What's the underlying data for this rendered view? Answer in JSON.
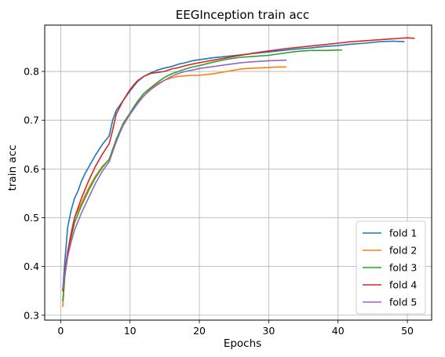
{
  "chart_data": {
    "type": "line",
    "title": "EEGInception train acc",
    "xlabel": "Epochs",
    "ylabel": "train acc",
    "xlim": [
      -2.3,
      53.5
    ],
    "ylim": [
      0.29,
      0.895
    ],
    "xticks": [
      0,
      10,
      20,
      30,
      40,
      50
    ],
    "yticks": [
      0.3,
      0.4,
      0.5,
      0.6,
      0.7,
      0.8
    ],
    "grid": true,
    "legend_position": "lower-right",
    "series": [
      {
        "name": "fold 1",
        "color": "#1f77b4",
        "x": [
          0.3,
          0.6,
          1,
          1.5,
          2,
          2.5,
          3,
          3.5,
          4,
          5,
          6,
          7,
          7.5,
          8,
          9,
          10,
          11,
          12,
          13,
          14,
          15,
          16,
          17,
          18,
          19,
          20,
          22,
          24,
          26,
          28,
          30,
          32,
          34,
          36,
          38,
          40,
          42,
          44,
          46,
          48,
          49.5
        ],
        "y": [
          0.352,
          0.41,
          0.48,
          0.515,
          0.54,
          0.555,
          0.575,
          0.59,
          0.603,
          0.628,
          0.65,
          0.668,
          0.7,
          0.72,
          0.74,
          0.76,
          0.778,
          0.79,
          0.797,
          0.803,
          0.807,
          0.81,
          0.815,
          0.818,
          0.822,
          0.824,
          0.828,
          0.831,
          0.834,
          0.837,
          0.84,
          0.843,
          0.846,
          0.848,
          0.851,
          0.853,
          0.856,
          0.858,
          0.861,
          0.862,
          0.861
        ]
      },
      {
        "name": "fold 2",
        "color": "#ff7f0e",
        "x": [
          0.3,
          0.6,
          1,
          1.5,
          2,
          3,
          4,
          5,
          6,
          7,
          8,
          9,
          10,
          11,
          12,
          13,
          14,
          15,
          16,
          17,
          18,
          19,
          20,
          22,
          24,
          26,
          28,
          30,
          31,
          32.5
        ],
        "y": [
          0.318,
          0.38,
          0.43,
          0.47,
          0.5,
          0.53,
          0.56,
          0.585,
          0.605,
          0.62,
          0.66,
          0.688,
          0.713,
          0.735,
          0.75,
          0.765,
          0.775,
          0.782,
          0.787,
          0.79,
          0.791,
          0.792,
          0.792,
          0.795,
          0.8,
          0.805,
          0.807,
          0.808,
          0.809,
          0.809
        ]
      },
      {
        "name": "fold 3",
        "color": "#2ca02c",
        "x": [
          0.3,
          0.6,
          1,
          1.5,
          2,
          3,
          4,
          5,
          6,
          7,
          8,
          9,
          10,
          11,
          12,
          13,
          14,
          15,
          16,
          17,
          18,
          19,
          20,
          22,
          24,
          26,
          28,
          30,
          32,
          34,
          36,
          38,
          40.5
        ],
        "y": [
          0.33,
          0.38,
          0.42,
          0.46,
          0.49,
          0.525,
          0.555,
          0.582,
          0.603,
          0.62,
          0.66,
          0.693,
          0.715,
          0.737,
          0.755,
          0.767,
          0.778,
          0.788,
          0.795,
          0.8,
          0.805,
          0.809,
          0.812,
          0.819,
          0.825,
          0.829,
          0.831,
          0.833,
          0.837,
          0.841,
          0.843,
          0.843,
          0.844
        ]
      },
      {
        "name": "fold 4",
        "color": "#d62728",
        "x": [
          0.3,
          0.6,
          1,
          1.5,
          2,
          3,
          4,
          5,
          6,
          7,
          7.5,
          8,
          9,
          10,
          11,
          12,
          13,
          14,
          15,
          16,
          17,
          18,
          19,
          20,
          22,
          24,
          26,
          28,
          30,
          32,
          34,
          36,
          38,
          40,
          42,
          44,
          46,
          48,
          50,
          51
        ],
        "y": [
          0.35,
          0.39,
          0.43,
          0.465,
          0.5,
          0.54,
          0.575,
          0.605,
          0.63,
          0.652,
          0.68,
          0.712,
          0.74,
          0.763,
          0.78,
          0.79,
          0.796,
          0.798,
          0.8,
          0.805,
          0.808,
          0.812,
          0.815,
          0.818,
          0.823,
          0.828,
          0.833,
          0.838,
          0.842,
          0.846,
          0.849,
          0.852,
          0.855,
          0.858,
          0.861,
          0.863,
          0.865,
          0.867,
          0.869,
          0.868
        ]
      },
      {
        "name": "fold 5",
        "color": "#9467bd",
        "x": [
          0.3,
          0.6,
          1,
          1.5,
          2,
          3,
          4,
          5,
          6,
          7,
          8,
          9,
          10,
          11,
          12,
          13,
          14,
          15,
          16,
          17,
          18,
          19,
          20,
          22,
          24,
          26,
          28,
          30,
          32.5
        ],
        "y": [
          0.355,
          0.385,
          0.42,
          0.45,
          0.475,
          0.51,
          0.54,
          0.57,
          0.595,
          0.615,
          0.655,
          0.69,
          0.712,
          0.732,
          0.75,
          0.763,
          0.773,
          0.782,
          0.79,
          0.796,
          0.8,
          0.803,
          0.806,
          0.81,
          0.814,
          0.818,
          0.82,
          0.822,
          0.823
        ]
      }
    ]
  }
}
